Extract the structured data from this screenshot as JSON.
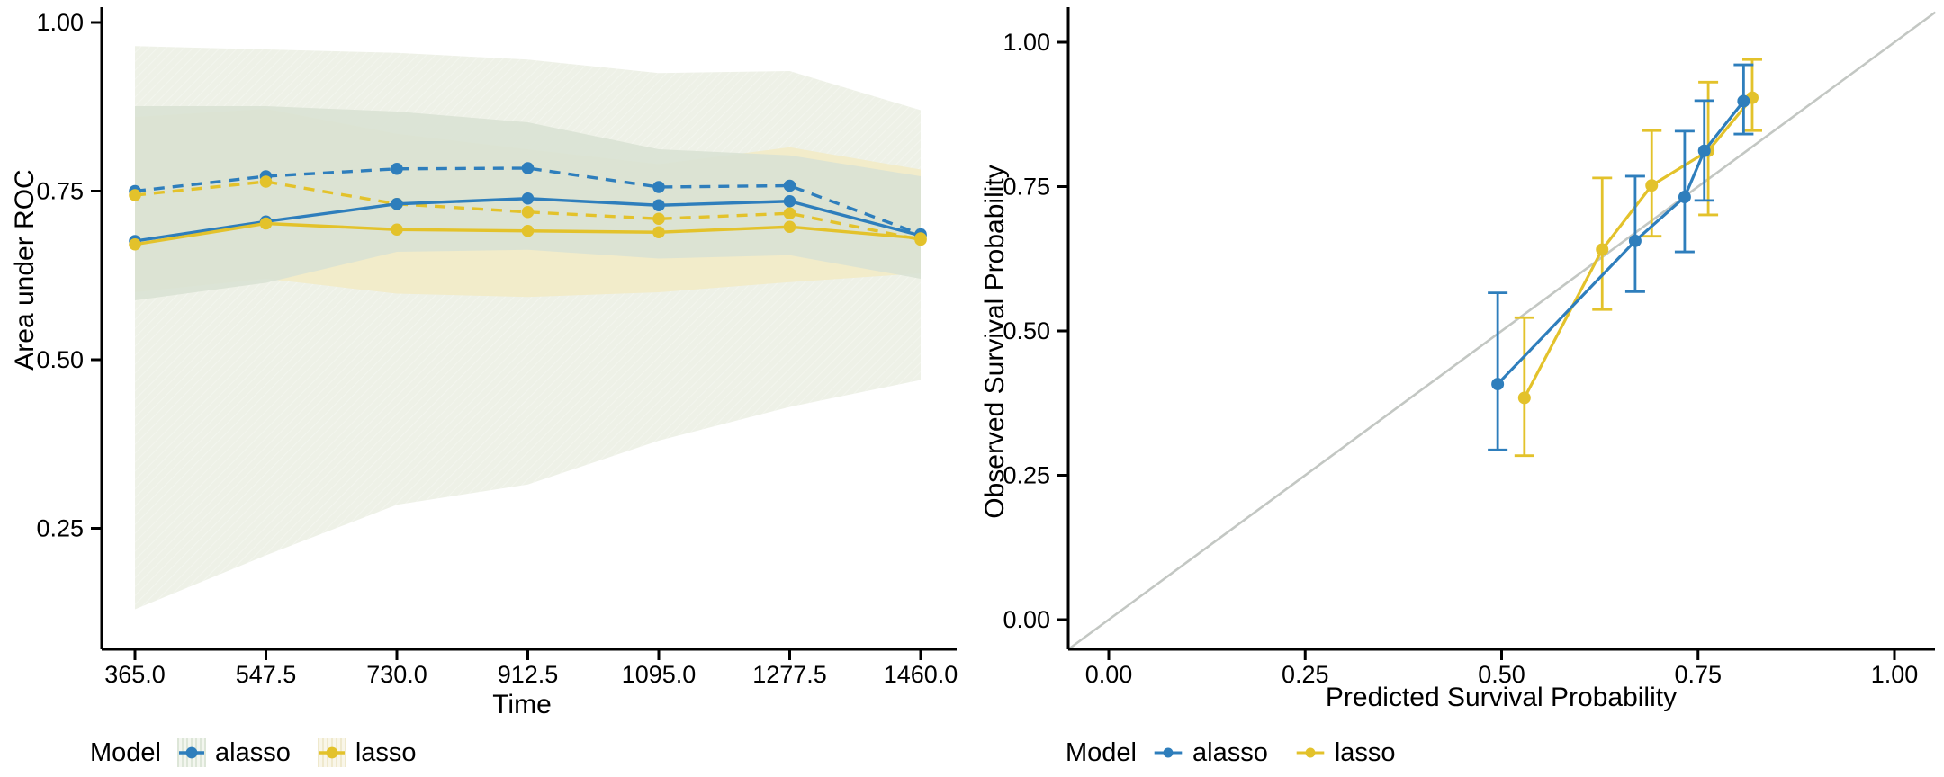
{
  "figure": {
    "background": "#ffffff",
    "text_color": "#000000",
    "colors": {
      "alasso": "#2e7ebc",
      "lasso": "#e3c22b",
      "reference_line": "#c3c7c3",
      "ribbon_outer": "#eef1e7",
      "ribbon_alasso": "#d9e2d4",
      "ribbon_lasso": "#f2ecca",
      "axis": "#000000"
    }
  },
  "chart_data": [
    {
      "type": "line",
      "title": "",
      "xlabel": "Time",
      "ylabel": "Area under ROC",
      "x": [
        365.0,
        547.5,
        730.0,
        912.5,
        1095.0,
        1277.5,
        1460.0
      ],
      "x_tick_labels": [
        "365.0",
        "547.5",
        "730.0",
        "912.5",
        "1095.0",
        "1277.5",
        "1460.0"
      ],
      "y_ticks": [
        0.25,
        0.5,
        0.75,
        1.0
      ],
      "y_tick_labels": [
        "0.25",
        "0.50",
        "0.75",
        "1.00"
      ],
      "xlim": [
        319,
        1506
      ],
      "ylim": [
        0.07,
        1.02
      ],
      "grid": false,
      "ribbons": [
        {
          "name": "outer-95ci-dashed-models",
          "color": "#eef1e7",
          "opacity": 1,
          "hatched": true,
          "upper": [
            0.965,
            0.96,
            0.955,
            0.945,
            0.925,
            0.928,
            0.87
          ],
          "lower": [
            0.13,
            0.21,
            0.285,
            0.315,
            0.38,
            0.43,
            0.47
          ]
        },
        {
          "name": "lasso-ci",
          "color": "#f2ecca",
          "opacity": 1,
          "hatched": false,
          "upper": [
            0.86,
            0.872,
            0.835,
            0.812,
            0.79,
            0.815,
            0.782
          ],
          "lower": [
            0.6,
            0.62,
            0.598,
            0.593,
            0.6,
            0.615,
            0.628
          ]
        },
        {
          "name": "alasso-ci",
          "color": "#d9e2d4",
          "opacity": 0.9,
          "hatched": false,
          "upper": [
            0.876,
            0.876,
            0.868,
            0.852,
            0.812,
            0.803,
            0.772
          ],
          "lower": [
            0.588,
            0.614,
            0.66,
            0.663,
            0.65,
            0.655,
            0.62
          ]
        }
      ],
      "series": [
        {
          "name": "alasso",
          "style": "dashed",
          "color": "#2e7ebc",
          "values": [
            0.75,
            0.772,
            0.783,
            0.784,
            0.756,
            0.758,
            0.686
          ]
        },
        {
          "name": "lasso",
          "style": "dashed",
          "color": "#e3c22b",
          "values": [
            0.744,
            0.764,
            0.731,
            0.719,
            0.709,
            0.717,
            0.678
          ]
        },
        {
          "name": "alasso",
          "style": "solid",
          "color": "#2e7ebc",
          "values": [
            0.676,
            0.705,
            0.731,
            0.739,
            0.729,
            0.735,
            0.684
          ]
        },
        {
          "name": "lasso",
          "style": "solid",
          "color": "#e3c22b",
          "values": [
            0.671,
            0.702,
            0.693,
            0.691,
            0.689,
            0.697,
            0.68
          ]
        }
      ],
      "legend": {
        "title": "Model",
        "position": "bottom-left",
        "entries": [
          {
            "label": "alasso",
            "color": "#2e7ebc",
            "key_background": "striped-green"
          },
          {
            "label": "lasso",
            "color": "#e3c22b",
            "key_background": "striped-yellow"
          }
        ]
      }
    },
    {
      "type": "scatter",
      "title": "",
      "xlabel": "Predicted Survival Probability",
      "ylabel": "Observed Survival Probability",
      "x_ticks": [
        0.0,
        0.25,
        0.5,
        0.75,
        1.0
      ],
      "x_tick_labels": [
        "0.00",
        "0.25",
        "0.50",
        "0.75",
        "1.00"
      ],
      "y_ticks": [
        0.0,
        0.25,
        0.5,
        0.75,
        1.0
      ],
      "y_tick_labels": [
        "0.00",
        "0.25",
        "0.50",
        "0.75",
        "1.00"
      ],
      "xlim": [
        -0.052,
        1.052
      ],
      "ylim": [
        -0.051,
        1.052
      ],
      "grid": false,
      "reference_line": {
        "type": "identity",
        "color": "#c3c7c3"
      },
      "series": [
        {
          "name": "lasso",
          "color": "#e3c22b",
          "points": [
            {
              "x": 0.529,
              "y": 0.384,
              "ylo": 0.284,
              "yhi": 0.523
            },
            {
              "x": 0.628,
              "y": 0.641,
              "ylo": 0.537,
              "yhi": 0.765
            },
            {
              "x": 0.691,
              "y": 0.752,
              "ylo": 0.664,
              "yhi": 0.847
            },
            {
              "x": 0.763,
              "y": 0.812,
              "ylo": 0.701,
              "yhi": 0.931
            },
            {
              "x": 0.819,
              "y": 0.904,
              "ylo": 0.847,
              "yhi": 0.97
            }
          ]
        },
        {
          "name": "alasso",
          "color": "#2e7ebc",
          "points": [
            {
              "x": 0.495,
              "y": 0.408,
              "ylo": 0.294,
              "yhi": 0.566
            },
            {
              "x": 0.67,
              "y": 0.656,
              "ylo": 0.568,
              "yhi": 0.768
            },
            {
              "x": 0.733,
              "y": 0.732,
              "ylo": 0.637,
              "yhi": 0.846
            },
            {
              "x": 0.758,
              "y": 0.812,
              "ylo": 0.726,
              "yhi": 0.899
            },
            {
              "x": 0.808,
              "y": 0.898,
              "ylo": 0.841,
              "yhi": 0.961
            }
          ]
        }
      ],
      "legend": {
        "title": "Model",
        "position": "bottom-left",
        "entries": [
          {
            "label": "alasso",
            "color": "#2e7ebc",
            "key_background": "none"
          },
          {
            "label": "lasso",
            "color": "#e3c22b",
            "key_background": "none"
          }
        ]
      }
    }
  ]
}
